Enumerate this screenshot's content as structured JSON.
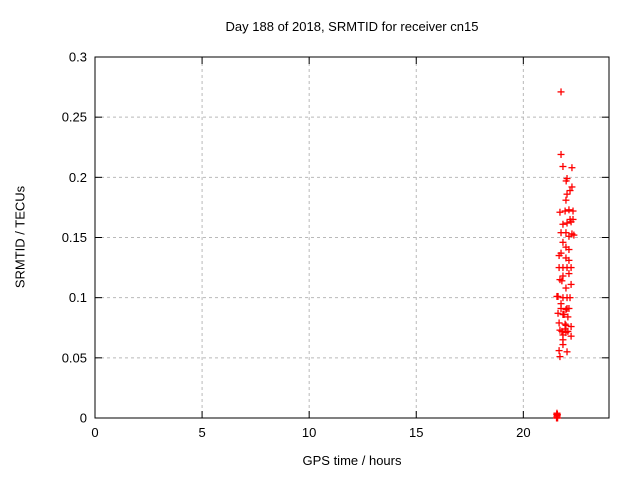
{
  "chart_data": {
    "type": "scatter",
    "title": "Day 188 of 2018, SRMTID for receiver cn15",
    "xlabel": "GPS time / hours",
    "ylabel": "SRMTID / TECUs",
    "xlim": [
      0,
      24
    ],
    "ylim": [
      0,
      0.3
    ],
    "xticks": {
      "values": [
        0,
        5,
        10,
        15,
        20
      ],
      "labels": [
        "0",
        "5",
        "10",
        "15",
        "20"
      ]
    },
    "yticks": {
      "values": [
        0,
        0.05,
        0.1,
        0.15,
        0.2,
        0.25,
        0.3
      ],
      "labels": [
        "0",
        "0.05",
        "0.1",
        "0.15",
        "0.2",
        "0.25",
        "0.3"
      ]
    },
    "grid": true,
    "legend_position": "none",
    "series": [
      {
        "name": "SRMTID",
        "marker": "plus",
        "color": "#ff0000",
        "points": [
          [
            21.76,
            0.271
          ],
          [
            21.76,
            0.219
          ],
          [
            21.85,
            0.209
          ],
          [
            22.27,
            0.208
          ],
          [
            22.04,
            0.199
          ],
          [
            22.0,
            0.197
          ],
          [
            22.27,
            0.192
          ],
          [
            22.18,
            0.189
          ],
          [
            22.04,
            0.186
          ],
          [
            21.99,
            0.181
          ],
          [
            21.71,
            0.171
          ],
          [
            21.95,
            0.172
          ],
          [
            22.13,
            0.173
          ],
          [
            22.32,
            0.172
          ],
          [
            22.18,
            0.165
          ],
          [
            22.32,
            0.165
          ],
          [
            22.23,
            0.163
          ],
          [
            21.85,
            0.161
          ],
          [
            22.04,
            0.162
          ],
          [
            21.76,
            0.154
          ],
          [
            21.99,
            0.154
          ],
          [
            22.27,
            0.153
          ],
          [
            22.36,
            0.152
          ],
          [
            22.13,
            0.151
          ],
          [
            21.85,
            0.146
          ],
          [
            21.99,
            0.142
          ],
          [
            22.13,
            0.14
          ],
          [
            21.76,
            0.137
          ],
          [
            21.67,
            0.135
          ],
          [
            21.99,
            0.133
          ],
          [
            22.13,
            0.131
          ],
          [
            21.67,
            0.125
          ],
          [
            21.85,
            0.125
          ],
          [
            22.04,
            0.125
          ],
          [
            22.23,
            0.125
          ],
          [
            22.13,
            0.12
          ],
          [
            21.85,
            0.118
          ],
          [
            21.71,
            0.115
          ],
          [
            21.8,
            0.114
          ],
          [
            22.23,
            0.111
          ],
          [
            21.99,
            0.108
          ],
          [
            21.57,
            0.101
          ],
          [
            21.62,
            0.101
          ],
          [
            21.85,
            0.1
          ],
          [
            22.04,
            0.1
          ],
          [
            22.18,
            0.1
          ],
          [
            21.76,
            0.095
          ],
          [
            21.76,
            0.091
          ],
          [
            22.04,
            0.091
          ],
          [
            22.13,
            0.091
          ],
          [
            21.99,
            0.09
          ],
          [
            21.62,
            0.087
          ],
          [
            21.85,
            0.086
          ],
          [
            21.9,
            0.086
          ],
          [
            22.08,
            0.084
          ],
          [
            21.67,
            0.079
          ],
          [
            21.95,
            0.078
          ],
          [
            21.99,
            0.077
          ],
          [
            22.23,
            0.076
          ],
          [
            21.71,
            0.073
          ],
          [
            21.95,
            0.074
          ],
          [
            22.08,
            0.072
          ],
          [
            21.8,
            0.072
          ],
          [
            21.99,
            0.071
          ],
          [
            21.85,
            0.069
          ],
          [
            22.23,
            0.068
          ],
          [
            21.85,
            0.065
          ],
          [
            21.85,
            0.061
          ],
          [
            21.67,
            0.056
          ],
          [
            22.04,
            0.055
          ],
          [
            21.71,
            0.051
          ],
          [
            21.55,
            0.0
          ],
          [
            21.6,
            0.0
          ],
          [
            21.57,
            0.001
          ],
          [
            21.58,
            0.002
          ],
          [
            21.56,
            0.003
          ],
          [
            21.59,
            0.003
          ],
          [
            21.57,
            0.004
          ]
        ]
      }
    ]
  },
  "style": {
    "background": "#ffffff",
    "axis_color": "#000000",
    "grid_color": "#b9b9b9",
    "text_color": "#000000",
    "marker_color": "#ff0000"
  }
}
